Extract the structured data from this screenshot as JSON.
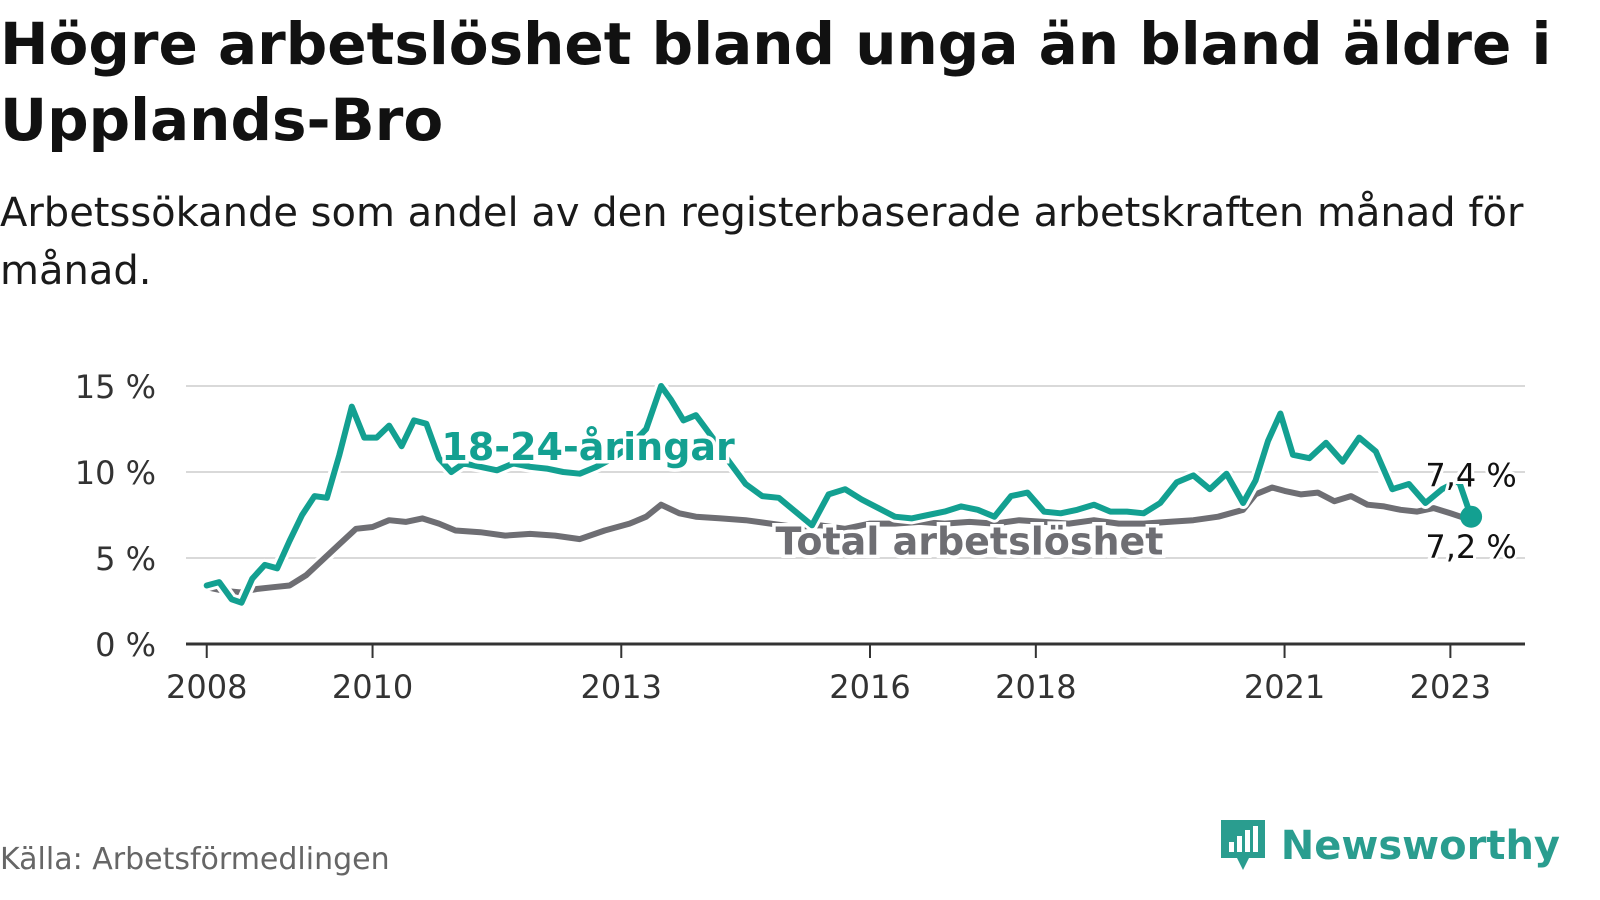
{
  "title": "Högre arbetslöshet bland unga än bland äldre i Upplands-Bro",
  "subtitle": "Arbetssökande som andel av den registerbaserade arbetskraften månad för månad.",
  "source": "Källa: Arbetsförmedlingen",
  "brand": "Newsworthy",
  "colors": {
    "youth": "#13a091",
    "total": "#6e6e73",
    "grid": "#d9d9d9",
    "axis": "#333333",
    "brand": "#2a9d8f"
  },
  "chart_data": {
    "type": "line",
    "title": "Högre arbetslöshet bland unga än bland äldre i Upplands-Bro",
    "xlabel": "",
    "ylabel": "",
    "xlim": [
      2007.75,
      2023.9
    ],
    "ylim": [
      0,
      15
    ],
    "yticks": [
      0,
      5,
      10,
      15
    ],
    "ytick_labels": [
      "0 %",
      "5 %",
      "10 %",
      "15 %"
    ],
    "xticks": [
      2008,
      2010,
      2013,
      2016,
      2018,
      2021,
      2023
    ],
    "xtick_labels": [
      "2008",
      "2010",
      "2013",
      "2016",
      "2018",
      "2021",
      "2023"
    ],
    "series": [
      {
        "name": "18-24-åringar",
        "label": "18-24-åringar",
        "end_label": "7,4 %",
        "x": [
          2008.0,
          2008.15,
          2008.3,
          2008.42,
          2008.55,
          2008.7,
          2008.85,
          2009.0,
          2009.15,
          2009.3,
          2009.45,
          2009.6,
          2009.75,
          2009.9,
          2010.05,
          2010.2,
          2010.35,
          2010.5,
          2010.65,
          2010.8,
          2010.95,
          2011.1,
          2011.3,
          2011.5,
          2011.7,
          2011.9,
          2012.1,
          2012.3,
          2012.5,
          2012.7,
          2012.9,
          2013.1,
          2013.3,
          2013.48,
          2013.6,
          2013.75,
          2013.9,
          2014.1,
          2014.3,
          2014.5,
          2014.7,
          2014.9,
          2015.1,
          2015.3,
          2015.5,
          2015.7,
          2015.9,
          2016.1,
          2016.3,
          2016.5,
          2016.7,
          2016.9,
          2017.1,
          2017.3,
          2017.5,
          2017.7,
          2017.9,
          2018.1,
          2018.3,
          2018.5,
          2018.7,
          2018.9,
          2019.1,
          2019.3,
          2019.5,
          2019.7,
          2019.9,
          2020.1,
          2020.3,
          2020.5,
          2020.65,
          2020.8,
          2020.95,
          2021.1,
          2021.3,
          2021.5,
          2021.7,
          2021.9,
          2022.1,
          2022.3,
          2022.5,
          2022.7,
          2022.9,
          2023.1,
          2023.25
        ],
        "values": [
          3.4,
          3.6,
          2.6,
          2.4,
          3.8,
          4.6,
          4.4,
          6.0,
          7.5,
          8.6,
          8.5,
          11.0,
          13.8,
          12.0,
          12.0,
          12.7,
          11.5,
          13.0,
          12.8,
          10.8,
          10.0,
          10.5,
          10.3,
          10.1,
          10.5,
          10.3,
          10.2,
          10.0,
          9.9,
          10.3,
          10.8,
          11.5,
          12.5,
          15.0,
          14.2,
          13.0,
          13.3,
          12.0,
          10.6,
          9.3,
          8.6,
          8.5,
          7.7,
          6.9,
          8.7,
          9.0,
          8.4,
          7.9,
          7.4,
          7.3,
          7.5,
          7.7,
          8.0,
          7.8,
          7.4,
          8.6,
          8.8,
          7.7,
          7.6,
          7.8,
          8.1,
          7.7,
          7.7,
          7.6,
          8.2,
          9.4,
          9.8,
          9.0,
          9.9,
          8.2,
          9.5,
          11.8,
          13.4,
          11.0,
          10.8,
          11.7,
          10.6,
          12.0,
          11.2,
          9.0,
          9.3,
          8.2,
          9.0,
          9.5,
          7.4
        ]
      },
      {
        "name": "Total arbetslöshet",
        "label": "Total arbetslöshet",
        "end_label": "7,2 %",
        "x": [
          2008.0,
          2008.2,
          2008.4,
          2008.6,
          2008.8,
          2009.0,
          2009.2,
          2009.4,
          2009.6,
          2009.8,
          2010.0,
          2010.2,
          2010.4,
          2010.6,
          2010.8,
          2011.0,
          2011.3,
          2011.6,
          2011.9,
          2012.2,
          2012.5,
          2012.8,
          2013.1,
          2013.3,
          2013.48,
          2013.7,
          2013.9,
          2014.2,
          2014.5,
          2014.8,
          2015.1,
          2015.4,
          2015.7,
          2016.0,
          2016.3,
          2016.6,
          2016.9,
          2017.2,
          2017.5,
          2017.8,
          2018.1,
          2018.4,
          2018.7,
          2019.0,
          2019.3,
          2019.6,
          2019.9,
          2020.2,
          2020.5,
          2020.65,
          2020.85,
          2021.0,
          2021.2,
          2021.4,
          2021.6,
          2021.8,
          2022.0,
          2022.2,
          2022.4,
          2022.6,
          2022.8,
          2023.0,
          2023.25
        ],
        "values": [
          3.3,
          3.1,
          3.0,
          3.2,
          3.3,
          3.4,
          4.0,
          4.9,
          5.8,
          6.7,
          6.8,
          7.2,
          7.1,
          7.3,
          7.0,
          6.6,
          6.5,
          6.3,
          6.4,
          6.3,
          6.1,
          6.6,
          7.0,
          7.4,
          8.1,
          7.6,
          7.4,
          7.3,
          7.2,
          7.0,
          6.8,
          6.9,
          6.7,
          7.0,
          7.0,
          7.1,
          7.0,
          7.1,
          7.0,
          7.2,
          7.1,
          7.0,
          7.2,
          7.0,
          7.0,
          7.1,
          7.2,
          7.4,
          7.8,
          8.7,
          9.1,
          8.9,
          8.7,
          8.8,
          8.3,
          8.6,
          8.1,
          8.0,
          7.8,
          7.7,
          7.9,
          7.6,
          7.2
        ]
      }
    ]
  }
}
